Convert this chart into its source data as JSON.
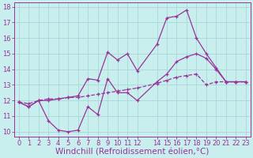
{
  "xlabel": "Windchill (Refroidissement éolien,°C)",
  "ylabel": "",
  "bg_color": "#c8eeed",
  "grid_color": "#a8d8d8",
  "line_color": "#993399",
  "xlim": [
    -0.5,
    23.5
  ],
  "ylim": [
    9.7,
    18.3
  ],
  "xticks": [
    0,
    1,
    2,
    3,
    4,
    5,
    6,
    7,
    8,
    9,
    10,
    11,
    12,
    14,
    15,
    16,
    17,
    18,
    19,
    20,
    21,
    22,
    23
  ],
  "yticks": [
    10,
    11,
    12,
    13,
    14,
    15,
    16,
    17,
    18
  ],
  "line1_x": [
    0,
    1,
    2,
    3,
    4,
    5,
    6,
    7,
    8,
    9,
    10,
    11,
    12,
    14,
    15,
    16,
    17,
    18,
    19,
    20,
    21,
    22,
    23
  ],
  "line1_y": [
    11.9,
    11.6,
    12.0,
    10.7,
    10.1,
    10.0,
    10.1,
    11.6,
    11.1,
    13.4,
    12.5,
    12.5,
    12.0,
    13.2,
    13.7,
    14.5,
    14.8,
    15.0,
    14.7,
    14.0,
    13.2,
    13.2,
    13.2
  ],
  "line2_x": [
    0,
    1,
    2,
    3,
    4,
    5,
    6,
    7,
    8,
    9,
    10,
    11,
    12,
    14,
    15,
    16,
    17,
    18,
    19,
    20,
    21,
    22,
    23
  ],
  "line2_y": [
    11.9,
    11.6,
    12.0,
    12.0,
    12.1,
    12.2,
    12.3,
    13.4,
    13.3,
    15.1,
    14.6,
    15.0,
    13.9,
    15.6,
    17.3,
    17.4,
    17.8,
    16.0,
    15.0,
    14.1,
    13.2,
    13.2,
    13.2
  ],
  "line3_x": [
    0,
    1,
    2,
    3,
    4,
    5,
    6,
    7,
    8,
    9,
    10,
    11,
    12,
    14,
    15,
    16,
    17,
    18,
    19,
    20,
    21,
    22,
    23
  ],
  "line3_y": [
    11.9,
    11.8,
    12.0,
    12.1,
    12.1,
    12.2,
    12.2,
    12.3,
    12.4,
    12.5,
    12.6,
    12.7,
    12.8,
    13.1,
    13.3,
    13.5,
    13.6,
    13.7,
    13.0,
    13.2,
    13.2,
    13.2,
    13.2
  ],
  "tick_fontsize": 6,
  "xlabel_fontsize": 7.5
}
